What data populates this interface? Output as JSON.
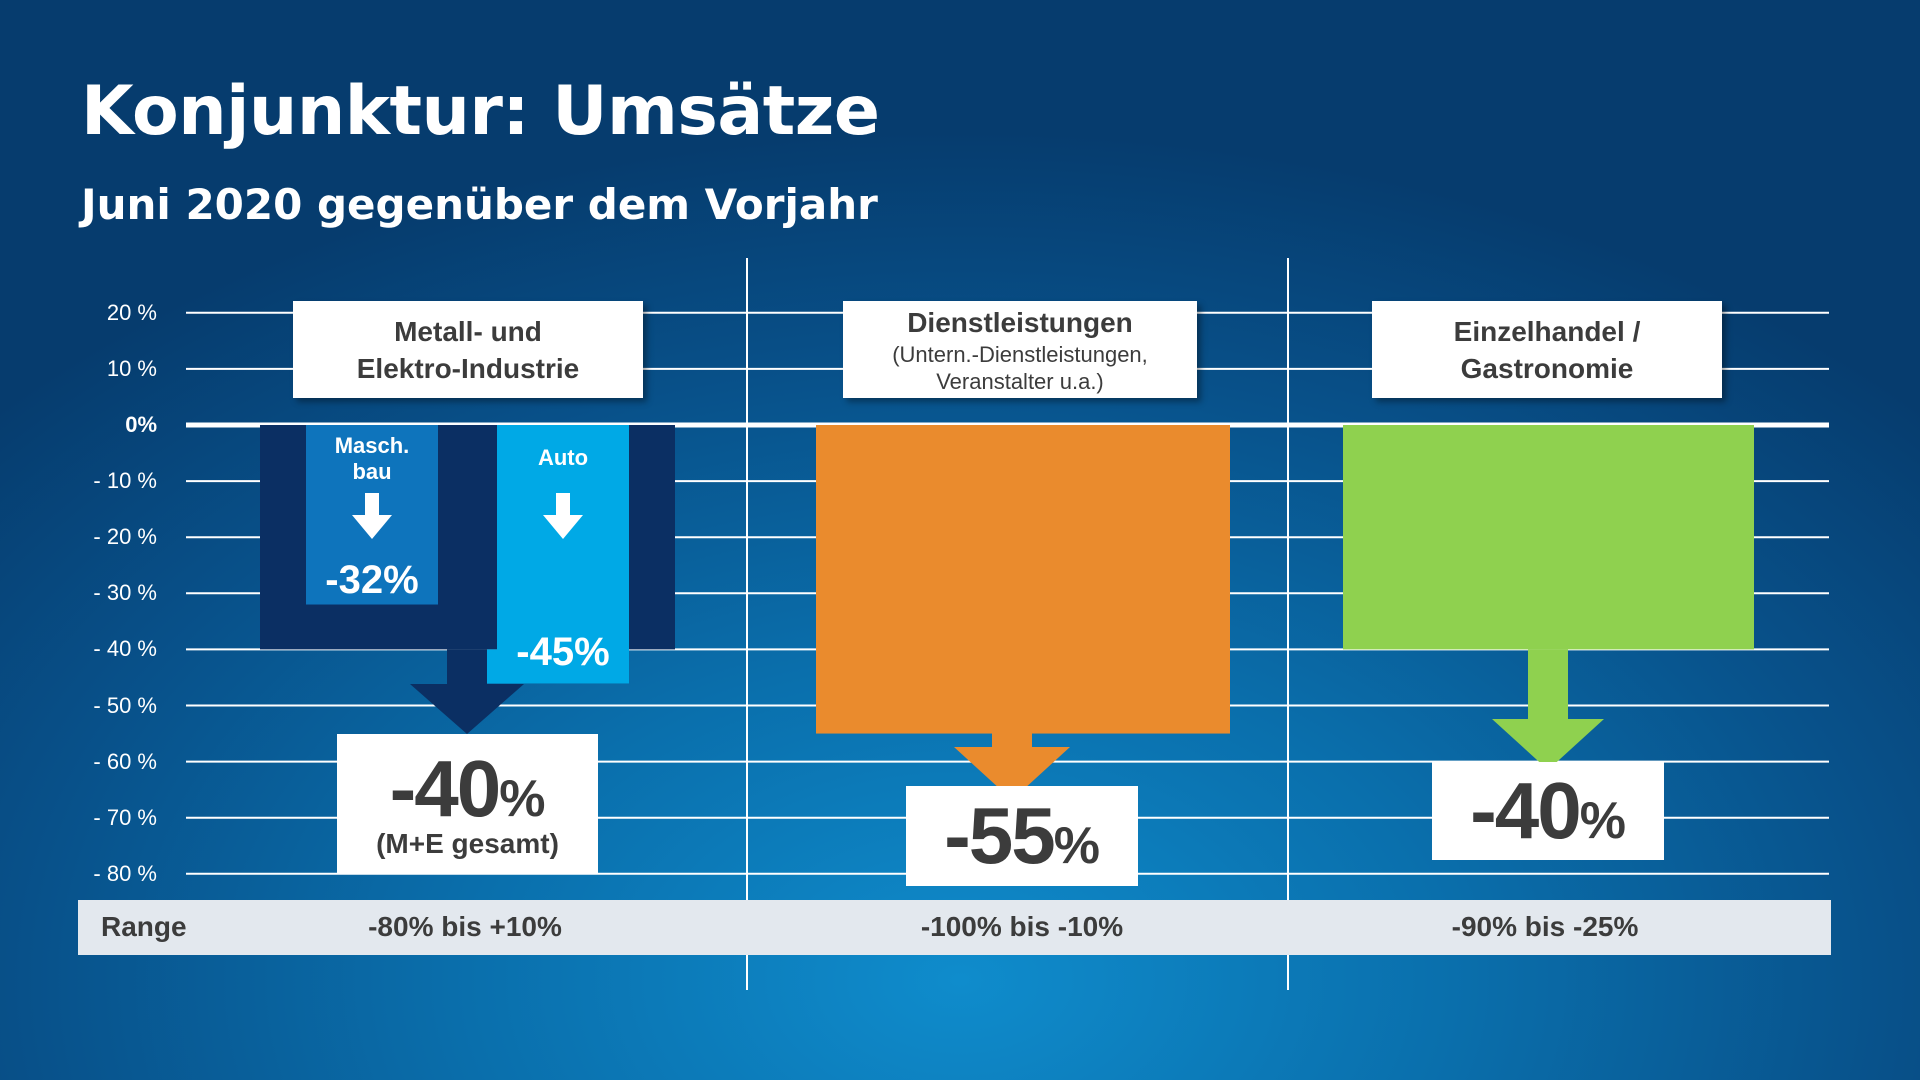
{
  "title": "Konjunktur: Umsätze",
  "subtitle": "Juni 2020 gegenüber dem Vorjahr",
  "colors": {
    "grid": "#ffffff",
    "metal_outer": "#0b2f63",
    "maschbau": "#0e74bc",
    "auto": "#00a9e6",
    "dienst": "#ea8b2d",
    "einzel": "#8fd14f",
    "label_box": "#ffffff",
    "range_row": "#e3e8ee"
  },
  "chart_data": {
    "type": "bar",
    "title": "Konjunktur: Umsätze",
    "subtitle": "Juni 2020 gegenüber dem Vorjahr",
    "y_ticks": [
      "20 %",
      "10 %",
      "0%",
      "- 10 %",
      "- 20 %",
      "- 30 %",
      "- 40 %",
      "- 50 %",
      "- 60 %",
      "- 70 %",
      "- 80 %"
    ],
    "y_tick_values": [
      20,
      10,
      0,
      -10,
      -20,
      -30,
      -40,
      -50,
      -60,
      -70,
      -80
    ],
    "ylim": [
      -80,
      20
    ],
    "grid": true,
    "categories": [
      {
        "name": "Metall- und Elektro-Industrie",
        "label_lines": [
          "Metall- und",
          "Elektro-Industrie"
        ],
        "value": -40,
        "result_label": "-40",
        "result_note": "(M+E gesamt)",
        "range": "-80% bis +10%",
        "subseries": [
          {
            "name": "Masch. bau",
            "label_lines": [
              "Masch.",
              "bau"
            ],
            "value": -32,
            "value_label": "-32%"
          },
          {
            "name": "Auto",
            "label_lines": [
              "Auto"
            ],
            "value": -45,
            "value_label": "-45%"
          }
        ]
      },
      {
        "name": "Dienstleistungen",
        "label_lines": [
          "Dienstleistungen"
        ],
        "sublabel_lines": [
          "(Untern.-Dienstleistungen,",
          "Veranstalter u.a.)"
        ],
        "value": -55,
        "result_label": "-55",
        "range": "-100% bis -10%"
      },
      {
        "name": "Einzelhandel / Gastronomie",
        "label_lines": [
          "Einzelhandel /",
          "Gastronomie"
        ],
        "value": -40,
        "result_label": "-40",
        "range": "-90% bis -25%"
      }
    ],
    "percent_sign": "%",
    "range_label": "Range"
  }
}
